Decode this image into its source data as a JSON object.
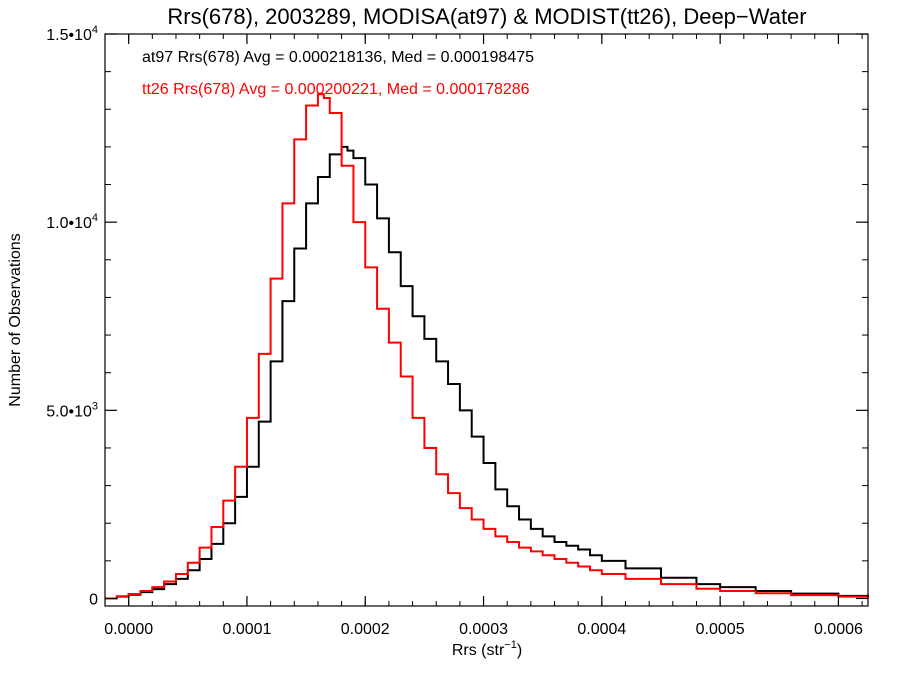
{
  "chart_data": {
    "type": "line",
    "title": "Rrs(678), 2003289, MODISA(at97) & MODIST(tt26), Deep−Water",
    "xlabel": "Rrs (str",
    "xlabel_sup": "−1",
    "xlabel_close": ")",
    "ylabel": "Number of Observations",
    "xlim": [
      -2e-05,
      0.000625
    ],
    "ylim": [
      -200,
      15000
    ],
    "x_ticks": [
      {
        "value": 0.0,
        "label": "0.0000"
      },
      {
        "value": 0.0001,
        "label": "0.0001"
      },
      {
        "value": 0.0002,
        "label": "0.0002"
      },
      {
        "value": 0.0003,
        "label": "0.0003"
      },
      {
        "value": 0.0004,
        "label": "0.0004"
      },
      {
        "value": 0.0005,
        "label": "0.0005"
      },
      {
        "value": 0.0006,
        "label": "0.0006"
      }
    ],
    "y_ticks": [
      {
        "value": 0,
        "label": "0",
        "sup": ""
      },
      {
        "value": 5000,
        "label": "5.0•10",
        "sup": "3"
      },
      {
        "value": 10000,
        "label": "1.0•10",
        "sup": "4"
      },
      {
        "value": 15000,
        "label": "1.5•10",
        "sup": "4"
      }
    ],
    "series": [
      {
        "name": "at97",
        "label": "at97 Rrs(678) Avg = 0.000218136, Med = 0.000198475",
        "color": "#000000",
        "x": [
          -2e-05,
          -1e-05,
          0.0,
          1e-05,
          2e-05,
          3e-05,
          4e-05,
          5e-05,
          6e-05,
          7e-05,
          8e-05,
          9e-05,
          0.0001,
          0.00011,
          0.00012,
          0.00013,
          0.00014,
          0.00015,
          0.00016,
          0.00017,
          0.00018,
          0.000185,
          0.00019,
          0.0002,
          0.00021,
          0.00022,
          0.00023,
          0.00024,
          0.00025,
          0.00026,
          0.00027,
          0.00028,
          0.00029,
          0.0003,
          0.00031,
          0.00032,
          0.00033,
          0.00034,
          0.00035,
          0.00036,
          0.00037,
          0.00038,
          0.00039,
          0.0004,
          0.00042,
          0.00045,
          0.00048,
          0.0005,
          0.00053,
          0.00056,
          0.0006,
          0.000625
        ],
        "y": [
          0,
          50,
          100,
          170,
          250,
          380,
          520,
          750,
          1050,
          1450,
          2000,
          2700,
          3500,
          4700,
          6300,
          7900,
          9300,
          10500,
          11200,
          11800,
          12000,
          11900,
          11700,
          11000,
          10100,
          9200,
          8300,
          7500,
          6900,
          6300,
          5700,
          5000,
          4300,
          3600,
          2900,
          2450,
          2100,
          1850,
          1650,
          1500,
          1400,
          1300,
          1150,
          1000,
          800,
          550,
          380,
          300,
          200,
          130,
          70,
          50
        ]
      },
      {
        "name": "tt26",
        "label": "tt26 Rrs(678) Avg = 0.000200221, Med = 0.000178286",
        "color": "#ff0000",
        "x": [
          -2e-05,
          -1e-05,
          0.0,
          1e-05,
          2e-05,
          3e-05,
          4e-05,
          5e-05,
          6e-05,
          7e-05,
          8e-05,
          9e-05,
          0.0001,
          0.00011,
          0.00012,
          0.00013,
          0.00014,
          0.00015,
          0.00016,
          0.000165,
          0.00017,
          0.00018,
          0.00019,
          0.0002,
          0.00021,
          0.00022,
          0.00023,
          0.00024,
          0.00025,
          0.00026,
          0.00027,
          0.00028,
          0.00029,
          0.0003,
          0.00031,
          0.00032,
          0.00033,
          0.00034,
          0.00035,
          0.00036,
          0.00037,
          0.00038,
          0.00039,
          0.0004,
          0.00042,
          0.00045,
          0.00048,
          0.0005,
          0.00053,
          0.00056,
          0.0006,
          0.000625
        ],
        "y": [
          0,
          60,
          120,
          200,
          300,
          450,
          650,
          950,
          1350,
          1900,
          2600,
          3500,
          4800,
          6500,
          8500,
          10500,
          12200,
          13100,
          13400,
          13300,
          12900,
          11500,
          10000,
          8800,
          7700,
          6800,
          5900,
          4800,
          4000,
          3300,
          2800,
          2400,
          2100,
          1850,
          1650,
          1500,
          1350,
          1250,
          1150,
          1050,
          950,
          850,
          750,
          650,
          520,
          380,
          260,
          200,
          140,
          90,
          50,
          30
        ]
      }
    ]
  }
}
